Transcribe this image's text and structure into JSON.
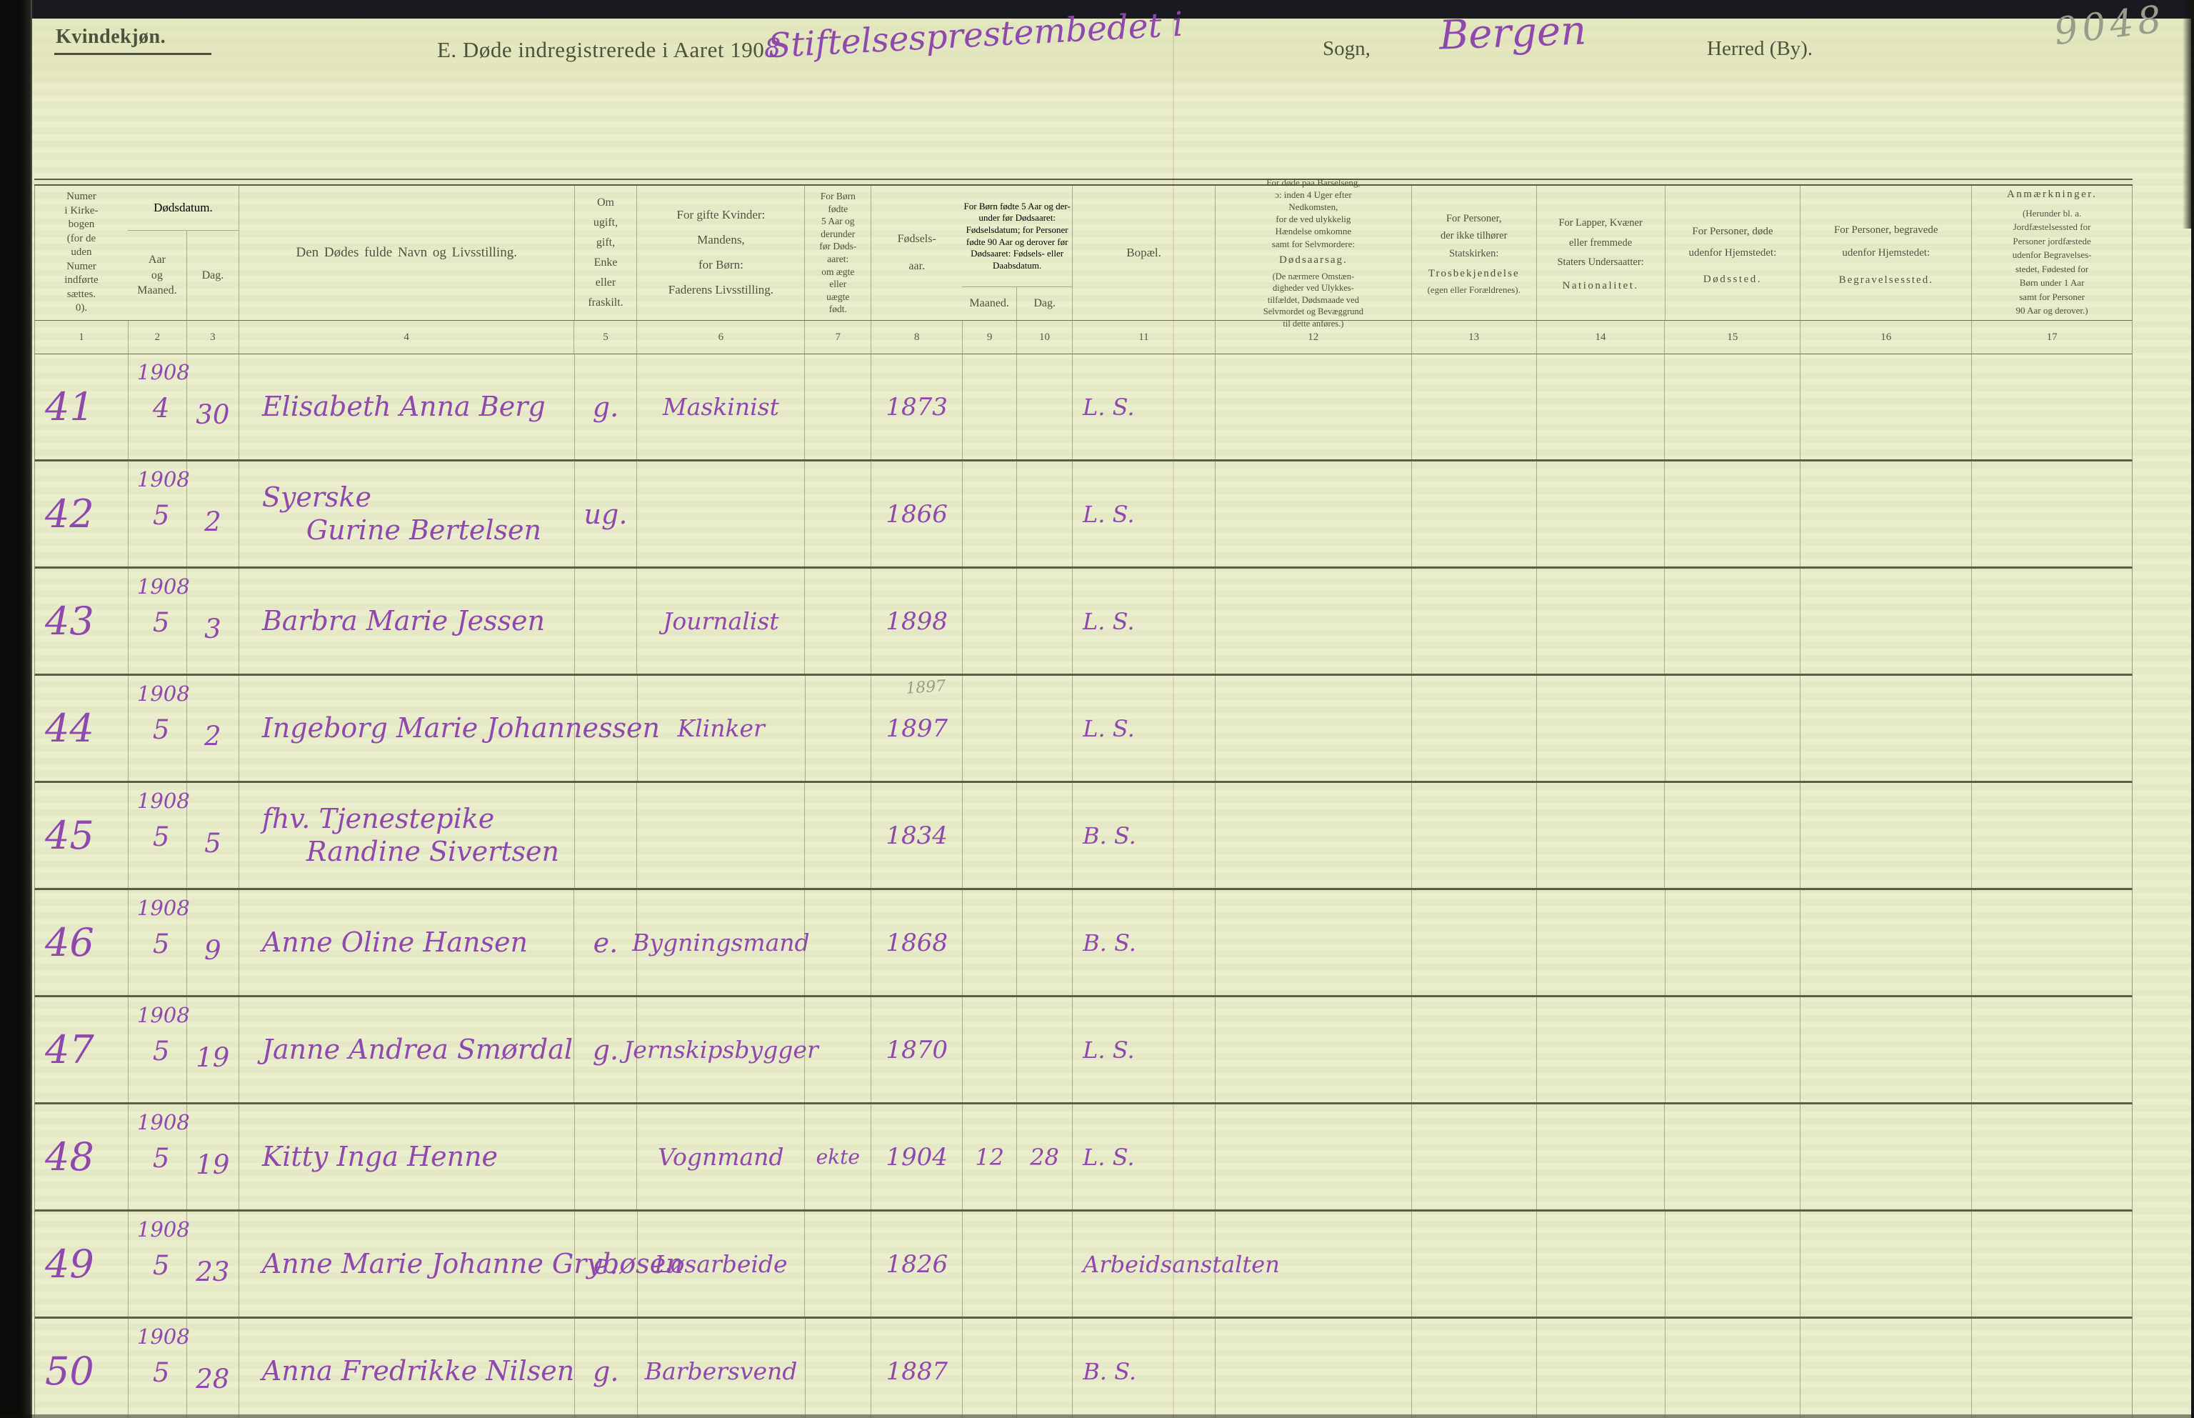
{
  "page": {
    "section_label": "Kvindekjøn.",
    "title_printed": "E.  Døde indregistrerede i Aaret 190",
    "title_year_digit": "8",
    "parish_script": "Stiftelsesprestembedet i",
    "sogn_label": "Sogn,",
    "place_script": "Bergen",
    "herred_label": "Herred (By).",
    "corner_number": "9048"
  },
  "table": {
    "column_numbers": [
      "1",
      "2",
      "3",
      "4",
      "5",
      "6",
      "7",
      "8",
      "9",
      "10",
      "11",
      "12",
      "13",
      "14",
      "15",
      "16",
      "17"
    ],
    "headers": {
      "numer": "Numer\ni Kirke-\nbogen\n(for de\nuden\nNumer\nindførte\nsættes.\n0).",
      "dodsdatum_group": "Dødsdatum.",
      "aar_maaned": "Aar\nog\nMaaned.",
      "dag": "Dag.",
      "navn": "Den Dødes fulde Navn og Livsstilling.",
      "civilstand": "Om\nugift,\ngift,\nEnke\neller\nfraskilt.",
      "mandens": "For gifte Kvinder:\nMandens,\nfor Børn:\nFaderens Livsstilling.",
      "aegte": "For Børn\nfødte\n5 Aar og\nderunder\nfør Døds-\naaret:\nom ægte\neller\nuægte\nfødt.",
      "fodselsaar": "Fødsels-\naar.",
      "fodselsdatum_group": "For Børn fødte\n5 Aar og der-\nunder før\nDødsaaret:\nFødselsdatum;\nfor Personer\nfødte 90 Aar\nog derover før\nDødsaaret:\nFødsels- eller\nDaabsdatum.",
      "maaned": "Maaned.",
      "dag2": "Dag.",
      "bopael": "Bopæl.",
      "dodsaarsag_top": "For døde paa Barselseng,\nɔ: inden 4 Uger efter\nNedkomsten,\nfor de ved ulykkelig\nHændelse omkomne\nsamt for Selvmordere:",
      "dodsaarsag_emph": "Dødsaarsag.",
      "dodsaarsag_note": "(De nærmere Omstæn-\ndigheder ved Ulykkes-\ntilfældet, Dødsmaade ved\nSelvmordet og Bevæggrund\ntil dette anføres.)",
      "tros_top": "For Personer,\nder ikke tilhører\nStatskirken:",
      "tros_emph": "Trosbekjendelse",
      "tros_note": "(egen eller Forældrenes).",
      "nat_top": "For Lapper, Kvæner\neller fremmede\nStaters Undersaatter:",
      "nat_emph": "Nationalitet.",
      "dodssted_top": "For Personer, døde\nudenfor Hjemstedet:",
      "dodssted_emph": "Dødssted.",
      "begravelse_top": "For Personer, begravede\nudenfor Hjemstedet:",
      "begravelse_emph": "Begravelsessted.",
      "anm_emph": "Anmærkninger.",
      "anm_note": "(Herunder bl. a.\nJordfæstelsessted for\nPersoner jordfæstede\nudenfor Begravelses-\nstedet, Fødested for\nBørn under 1 Aar\nsamt for Personer\n90 Aar og derover.)"
    },
    "rows": [
      {
        "nr": "41",
        "year": "1908",
        "month": "4",
        "day": "30",
        "name1": "Elisabeth Anna Berg",
        "name2": "",
        "status": "g.",
        "occupation": "Maskinist",
        "legitimacy": "",
        "birth_pencil": "",
        "birth_year": "1873",
        "birth_month": "",
        "birth_day": "",
        "residence": "L. S."
      },
      {
        "nr": "42",
        "year": "1908",
        "month": "5",
        "day": "2",
        "name1": "Syerske",
        "name2": "Gurine Bertelsen",
        "status": "ug.",
        "occupation": "",
        "legitimacy": "",
        "birth_pencil": "",
        "birth_year": "1866",
        "birth_month": "",
        "birth_day": "",
        "residence": "L. S."
      },
      {
        "nr": "43",
        "year": "1908",
        "month": "5",
        "day": "3",
        "name1": "Barbra Marie Jessen",
        "name2": "",
        "status": "",
        "occupation": "Journalist",
        "legitimacy": "",
        "birth_pencil": "",
        "birth_year": "1898",
        "birth_month": "",
        "birth_day": "",
        "residence": "L. S."
      },
      {
        "nr": "44",
        "year": "1908",
        "month": "5",
        "day": "2",
        "name1": "Ingeborg Marie Johannessen",
        "name2": "",
        "status": "",
        "occupation": "Klinker",
        "legitimacy": "",
        "birth_pencil": "1897",
        "birth_year": "1897",
        "birth_month": "",
        "birth_day": "",
        "residence": "L. S."
      },
      {
        "nr": "45",
        "year": "1908",
        "month": "5",
        "day": "5",
        "name1": "fhv. Tjenestepike",
        "name2": "Randine Sivertsen",
        "status": "",
        "occupation": "",
        "legitimacy": "",
        "birth_pencil": "",
        "birth_year": "1834",
        "birth_month": "",
        "birth_day": "",
        "residence": "B. S."
      },
      {
        "nr": "46",
        "year": "1908",
        "month": "5",
        "day": "9",
        "name1": "Anne Oline Hansen",
        "name2": "",
        "status": "e.",
        "occupation": "Bygningsmand",
        "legitimacy": "",
        "birth_pencil": "",
        "birth_year": "1868",
        "birth_month": "",
        "birth_day": "",
        "residence": "B. S."
      },
      {
        "nr": "47",
        "year": "1908",
        "month": "5",
        "day": "19",
        "name1": "Janne Andrea Smørdal",
        "name2": "",
        "status": "g.",
        "occupation": "Jernskipsbygger",
        "legitimacy": "",
        "birth_pencil": "",
        "birth_year": "1870",
        "birth_month": "",
        "birth_day": "",
        "residence": "L. S."
      },
      {
        "nr": "48",
        "year": "1908",
        "month": "5",
        "day": "19",
        "name1": "Kitty Inga Henne",
        "name2": "",
        "status": "",
        "occupation": "Vognmand",
        "legitimacy": "ekte",
        "birth_pencil": "",
        "birth_year": "1904",
        "birth_month": "12",
        "birth_day": "28",
        "residence": "L. S."
      },
      {
        "nr": "49",
        "year": "1908",
        "month": "5",
        "day": "23",
        "name1": "Anne Marie Johanne Grybøsen",
        "name2": "",
        "status": "e.",
        "occupation": "Løsarbeide",
        "legitimacy": "",
        "birth_pencil": "",
        "birth_year": "1826",
        "birth_month": "",
        "birth_day": "",
        "residence": "Arbeidsanstalten"
      },
      {
        "nr": "50",
        "year": "1908",
        "month": "5",
        "day": "28",
        "name1": "Anna Fredrikke Nilsen",
        "name2": "",
        "status": "g.",
        "occupation": "Barbersvend",
        "legitimacy": "",
        "birth_pencil": "",
        "birth_year": "1887",
        "birth_month": "",
        "birth_day": "",
        "residence": "B. S."
      }
    ]
  }
}
